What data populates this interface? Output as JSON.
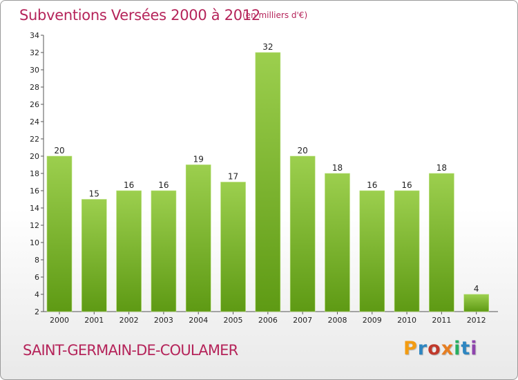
{
  "header": {
    "title": "Subventions Versées 2000 à 2012",
    "subtitle": "(en milliers d'€)"
  },
  "footer": {
    "commune": "SAINT-GERMAIN-DE-COULAMER",
    "brand": "Proxiti",
    "brand_colors": [
      "#f39c12",
      "#2e86c1",
      "#c0392b",
      "#e67e22",
      "#27ae60",
      "#2e86c1",
      "#8e44ad"
    ]
  },
  "colors": {
    "title": "#b5245a",
    "bar_top": "#9ccf4e",
    "bar_bottom": "#5e9a14",
    "axis": "#555555"
  },
  "chart_data": {
    "type": "bar",
    "categories": [
      "2000",
      "2001",
      "2002",
      "2003",
      "2004",
      "2005",
      "2006",
      "2007",
      "2008",
      "2009",
      "2010",
      "2011",
      "2012"
    ],
    "values": [
      20,
      15,
      16,
      16,
      19,
      17,
      32,
      20,
      18,
      16,
      16,
      18,
      4
    ],
    "title": "Subventions Versées 2000 à 2012",
    "xlabel": "",
    "ylabel": "",
    "ylim": [
      2,
      34
    ],
    "yticks": [
      2,
      4,
      6,
      8,
      10,
      12,
      14,
      16,
      18,
      20,
      22,
      24,
      26,
      28,
      30,
      32,
      34
    ],
    "grid": false,
    "legend": "none"
  }
}
